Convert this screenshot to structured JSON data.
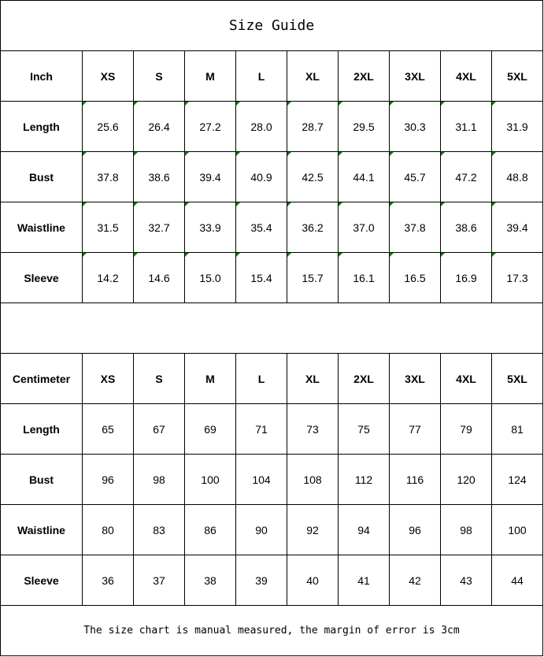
{
  "title": "Size Guide",
  "sizes": [
    "XS",
    "S",
    "M",
    "L",
    "XL",
    "2XL",
    "3XL",
    "4XL",
    "5XL"
  ],
  "inch": {
    "unit_label": "Inch",
    "rows": [
      {
        "label": "Length",
        "values": [
          "25.6",
          "26.4",
          "27.2",
          "28.0",
          "28.7",
          "29.5",
          "30.3",
          "31.1",
          "31.9"
        ]
      },
      {
        "label": "Bust",
        "values": [
          "37.8",
          "38.6",
          "39.4",
          "40.9",
          "42.5",
          "44.1",
          "45.7",
          "47.2",
          "48.8"
        ]
      },
      {
        "label": "Waistline",
        "values": [
          "31.5",
          "32.7",
          "33.9",
          "35.4",
          "36.2",
          "37.0",
          "37.8",
          "38.6",
          "39.4"
        ]
      },
      {
        "label": "Sleeve",
        "values": [
          "14.2",
          "14.6",
          "15.0",
          "15.4",
          "15.7",
          "16.1",
          "16.5",
          "16.9",
          "17.3"
        ]
      }
    ]
  },
  "centimeter": {
    "unit_label": "Centimeter",
    "rows": [
      {
        "label": "Length",
        "values": [
          "65",
          "67",
          "69",
          "71",
          "73",
          "75",
          "77",
          "79",
          "81"
        ]
      },
      {
        "label": "Bust",
        "values": [
          "96",
          "98",
          "100",
          "104",
          "108",
          "112",
          "116",
          "120",
          "124"
        ]
      },
      {
        "label": "Waistline",
        "values": [
          "80",
          "83",
          "86",
          "90",
          "92",
          "94",
          "96",
          "98",
          "100"
        ]
      },
      {
        "label": "Sleeve",
        "values": [
          "36",
          "37",
          "38",
          "39",
          "40",
          "41",
          "42",
          "43",
          "44"
        ]
      }
    ]
  },
  "note": "The size chart is manual measured, the margin of error is 3cm",
  "colors": {
    "text_flag_marker": "#0a7a0a",
    "border": "#000000"
  }
}
